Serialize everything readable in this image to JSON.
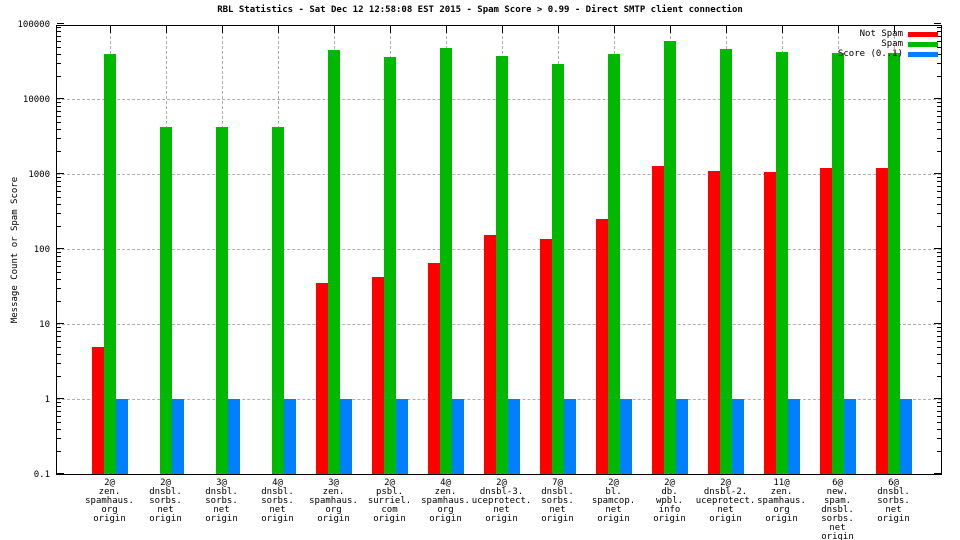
{
  "chart_data": {
    "type": "bar",
    "title": "RBL Statistics - Sat Dec 12 12:58:08 EST 2015 - Spam Score > 0.99 - Direct SMTP client connection",
    "ylabel": "Message Count or Spam Score",
    "xlabel": "",
    "y_scale": "log",
    "ylim": [
      0.1,
      100000
    ],
    "ytick_labels": [
      "100000",
      "10000",
      "1000",
      "100",
      "10",
      "1",
      "0.1"
    ],
    "grid": true,
    "legend_position": "top-right-inside",
    "legend": [
      {
        "name": "Not Spam",
        "color": "#ff0000"
      },
      {
        "name": "Spam",
        "color": "#00b800"
      },
      {
        "name": "Score (0..1)",
        "color": "#0080ff"
      }
    ],
    "categories": [
      [
        "2@",
        "zen.",
        "spamhaus.",
        "org",
        "origin"
      ],
      [
        "2@",
        "dnsbl.",
        "sorbs.",
        "net",
        "origin"
      ],
      [
        "3@",
        "dnsbl.",
        "sorbs.",
        "net",
        "origin"
      ],
      [
        "4@",
        "dnsbl.",
        "sorbs.",
        "net",
        "origin"
      ],
      [
        "3@",
        "zen.",
        "spamhaus.",
        "org",
        "origin"
      ],
      [
        "2@",
        "psbl.",
        "surriel.",
        "com",
        "origin"
      ],
      [
        "4@",
        "zen.",
        "spamhaus.",
        "org",
        "origin"
      ],
      [
        "2@",
        "dnsbl-3.",
        "uceprotect.",
        "net",
        "origin"
      ],
      [
        "7@",
        "dnsbl.",
        "sorbs.",
        "net",
        "origin"
      ],
      [
        "2@",
        "bl.",
        "spamcop.",
        "net",
        "origin"
      ],
      [
        "2@",
        "db.",
        "wpbl.",
        "info",
        "origin"
      ],
      [
        "2@",
        "dnsbl-2.",
        "uceprotect.",
        "net",
        "origin"
      ],
      [
        "11@",
        "zen.",
        "spamhaus.",
        "org",
        "origin"
      ],
      [
        "6@",
        "new.",
        "spam.",
        "dnsbl.",
        "sorbs.",
        "net",
        "origin"
      ],
      [
        "6@",
        "dnsbl.",
        "sorbs.",
        "net",
        "origin"
      ]
    ],
    "series": [
      {
        "name": "Not Spam",
        "color": "#ff0000",
        "values": [
          5,
          0,
          0,
          0,
          35,
          42,
          65,
          155,
          135,
          255,
          1280,
          1100,
          1050,
          1200,
          1200
        ]
      },
      {
        "name": "Spam",
        "color": "#00b800",
        "values": [
          40000,
          4200,
          4200,
          4200,
          45000,
          36000,
          48000,
          38000,
          29000,
          40000,
          60000,
          47000,
          42000,
          41000,
          41000
        ]
      },
      {
        "name": "Score (0..1)",
        "color": "#0080ff",
        "values": [
          1,
          1,
          1,
          1,
          1,
          1,
          1,
          1,
          1,
          1,
          1,
          1,
          1,
          1,
          1
        ]
      }
    ],
    "colors": {
      "not_spam": "#ff0000",
      "spam": "#00b800",
      "score": "#0080ff",
      "grid": "#b0b0b0",
      "border": "#000000",
      "background": "#ffffff"
    }
  }
}
